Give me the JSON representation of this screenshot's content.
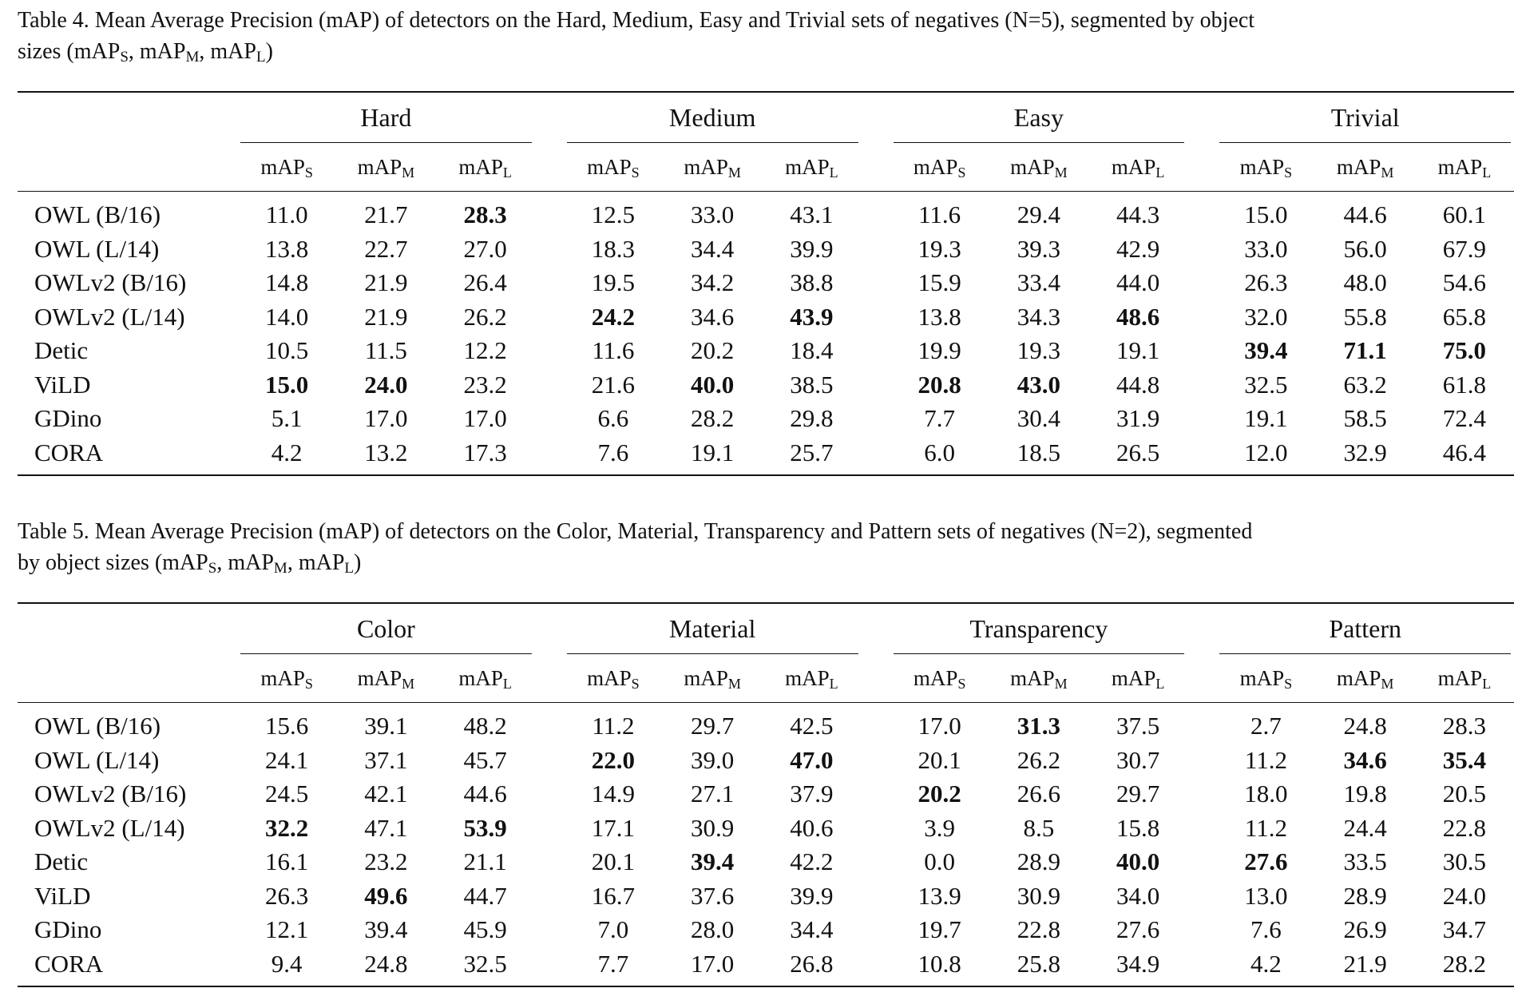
{
  "tables": [
    {
      "caption": {
        "line1": "Table 4. Mean Average Precision (mAP) of detectors on the Hard, Medium, Easy and Trivial sets of negatives (N=5), segmented by object",
        "line2_prefix": "sizes (mAP",
        "sub_s": "S",
        "sep1": ", mAP",
        "sub_m": "M",
        "sep2": ", mAP",
        "sub_l": "L",
        "suffix": ")"
      },
      "groups": [
        "Hard",
        "Medium",
        "Easy",
        "Trivial"
      ],
      "sub_headers": [
        {
          "base": "mAP",
          "sub": "S"
        },
        {
          "base": "mAP",
          "sub": "M"
        },
        {
          "base": "mAP",
          "sub": "L"
        }
      ],
      "rows": [
        {
          "model": "OWL (B/16)",
          "values": [
            "11.0",
            "21.7",
            "28.3",
            "12.5",
            "33.0",
            "43.1",
            "11.6",
            "29.4",
            "44.3",
            "15.0",
            "44.6",
            "60.1"
          ],
          "bold": [
            2
          ]
        },
        {
          "model": "OWL (L/14)",
          "values": [
            "13.8",
            "22.7",
            "27.0",
            "18.3",
            "34.4",
            "39.9",
            "19.3",
            "39.3",
            "42.9",
            "33.0",
            "56.0",
            "67.9"
          ],
          "bold": []
        },
        {
          "model": "OWLv2 (B/16)",
          "values": [
            "14.8",
            "21.9",
            "26.4",
            "19.5",
            "34.2",
            "38.8",
            "15.9",
            "33.4",
            "44.0",
            "26.3",
            "48.0",
            "54.6"
          ],
          "bold": []
        },
        {
          "model": "OWLv2 (L/14)",
          "values": [
            "14.0",
            "21.9",
            "26.2",
            "24.2",
            "34.6",
            "43.9",
            "13.8",
            "34.3",
            "48.6",
            "32.0",
            "55.8",
            "65.8"
          ],
          "bold": [
            3,
            5,
            8
          ]
        },
        {
          "model": "Detic",
          "values": [
            "10.5",
            "11.5",
            "12.2",
            "11.6",
            "20.2",
            "18.4",
            "19.9",
            "19.3",
            "19.1",
            "39.4",
            "71.1",
            "75.0"
          ],
          "bold": [
            9,
            10,
            11
          ]
        },
        {
          "model": "ViLD",
          "values": [
            "15.0",
            "24.0",
            "23.2",
            "21.6",
            "40.0",
            "38.5",
            "20.8",
            "43.0",
            "44.8",
            "32.5",
            "63.2",
            "61.8"
          ],
          "bold": [
            0,
            1,
            4,
            6,
            7
          ]
        },
        {
          "model": "GDino",
          "values": [
            "5.1",
            "17.0",
            "17.0",
            "6.6",
            "28.2",
            "29.8",
            "7.7",
            "30.4",
            "31.9",
            "19.1",
            "58.5",
            "72.4"
          ],
          "bold": []
        },
        {
          "model": "CORA",
          "values": [
            "4.2",
            "13.2",
            "17.3",
            "7.6",
            "19.1",
            "25.7",
            "6.0",
            "18.5",
            "26.5",
            "12.0",
            "32.9",
            "46.4"
          ],
          "bold": []
        }
      ]
    },
    {
      "caption": {
        "line1": "Table 5. Mean Average Precision (mAP) of detectors on the Color, Material, Transparency and Pattern sets of negatives (N=2), segmented",
        "line2_prefix": "by object sizes (mAP",
        "sub_s": "S",
        "sep1": ", mAP",
        "sub_m": "M",
        "sep2": ", mAP",
        "sub_l": "L",
        "suffix": ")"
      },
      "groups": [
        "Color",
        "Material",
        "Transparency",
        "Pattern"
      ],
      "sub_headers": [
        {
          "base": "mAP",
          "sub": "S"
        },
        {
          "base": "mAP",
          "sub": "M"
        },
        {
          "base": "mAP",
          "sub": "L"
        }
      ],
      "rows": [
        {
          "model": "OWL (B/16)",
          "values": [
            "15.6",
            "39.1",
            "48.2",
            "11.2",
            "29.7",
            "42.5",
            "17.0",
            "31.3",
            "37.5",
            "2.7",
            "24.8",
            "28.3"
          ],
          "bold": [
            7
          ]
        },
        {
          "model": "OWL (L/14)",
          "values": [
            "24.1",
            "37.1",
            "45.7",
            "22.0",
            "39.0",
            "47.0",
            "20.1",
            "26.2",
            "30.7",
            "11.2",
            "34.6",
            "35.4"
          ],
          "bold": [
            3,
            5,
            10,
            11
          ]
        },
        {
          "model": "OWLv2 (B/16)",
          "values": [
            "24.5",
            "42.1",
            "44.6",
            "14.9",
            "27.1",
            "37.9",
            "20.2",
            "26.6",
            "29.7",
            "18.0",
            "19.8",
            "20.5"
          ],
          "bold": [
            6
          ]
        },
        {
          "model": "OWLv2 (L/14)",
          "values": [
            "32.2",
            "47.1",
            "53.9",
            "17.1",
            "30.9",
            "40.6",
            "3.9",
            "8.5",
            "15.8",
            "11.2",
            "24.4",
            "22.8"
          ],
          "bold": [
            0,
            2
          ]
        },
        {
          "model": "Detic",
          "values": [
            "16.1",
            "23.2",
            "21.1",
            "20.1",
            "39.4",
            "42.2",
            "0.0",
            "28.9",
            "40.0",
            "27.6",
            "33.5",
            "30.5"
          ],
          "bold": [
            4,
            8,
            9
          ]
        },
        {
          "model": "ViLD",
          "values": [
            "26.3",
            "49.6",
            "44.7",
            "16.7",
            "37.6",
            "39.9",
            "13.9",
            "30.9",
            "34.0",
            "13.0",
            "28.9",
            "24.0"
          ],
          "bold": [
            1
          ]
        },
        {
          "model": "GDino",
          "values": [
            "12.1",
            "39.4",
            "45.9",
            "7.0",
            "28.0",
            "34.4",
            "19.7",
            "22.8",
            "27.6",
            "7.6",
            "26.9",
            "34.7"
          ],
          "bold": []
        },
        {
          "model": "CORA",
          "values": [
            "9.4",
            "24.8",
            "32.5",
            "7.7",
            "17.0",
            "26.8",
            "10.8",
            "25.8",
            "34.9",
            "4.2",
            "21.9",
            "28.2"
          ],
          "bold": []
        }
      ]
    }
  ]
}
